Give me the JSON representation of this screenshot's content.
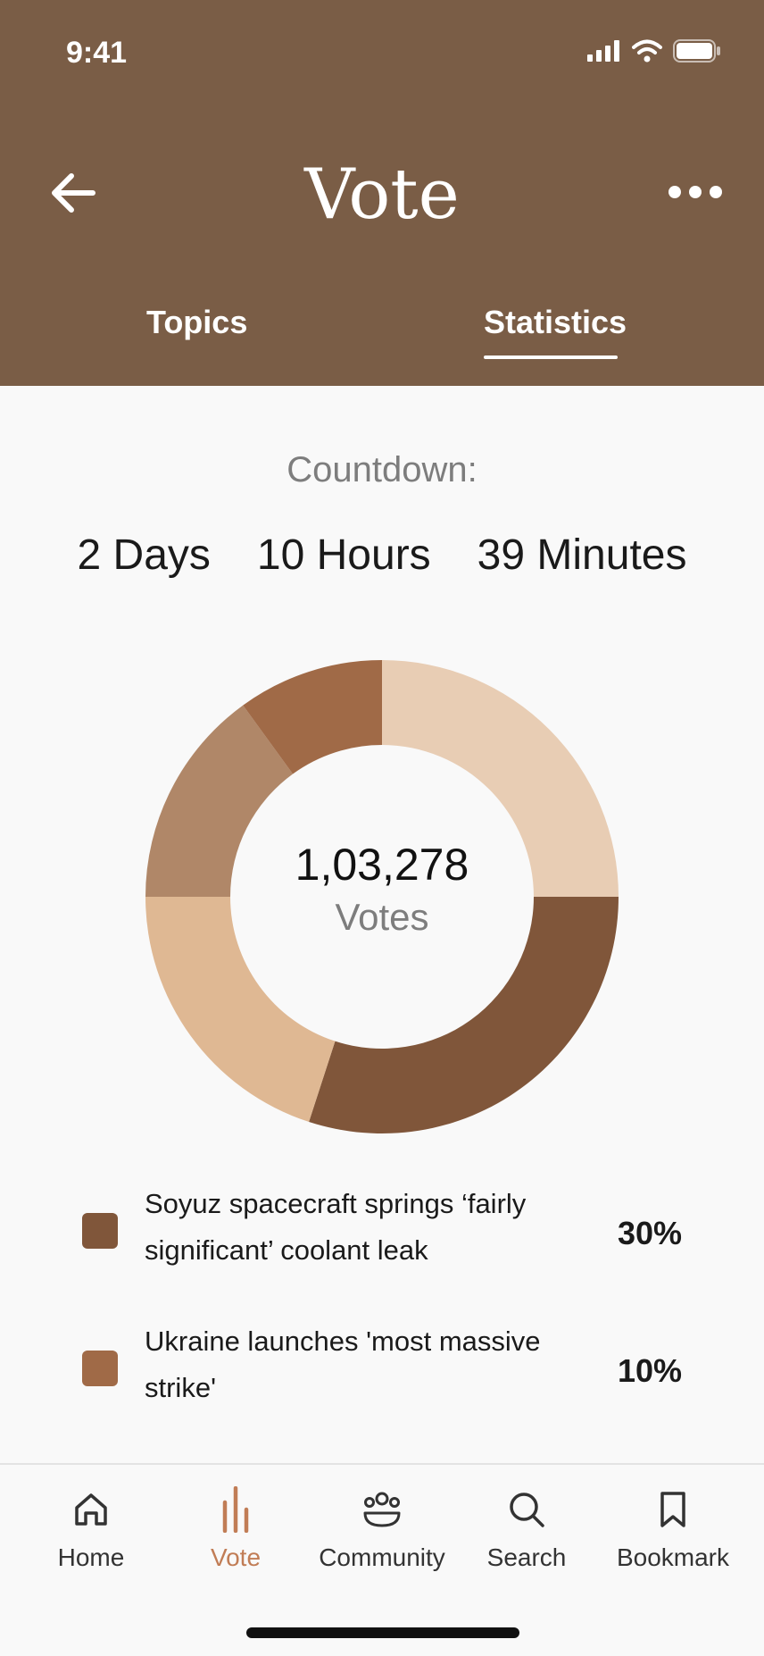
{
  "status_bar": {
    "time": "9:41"
  },
  "header": {
    "title": "Vote"
  },
  "tabs": [
    {
      "label": "Topics",
      "active": false
    },
    {
      "label": "Statistics",
      "active": true
    }
  ],
  "countdown": {
    "label": "Countdown:",
    "days": "2 Days",
    "hours": "10 Hours",
    "minutes": "39 Minutes"
  },
  "chart_data": {
    "type": "pie",
    "total": "1,03,278",
    "total_label": "Votes",
    "slices": [
      {
        "value": 25,
        "color": "#e8cdb4"
      },
      {
        "value": 30,
        "color": "#80563a"
      },
      {
        "value": 20,
        "color": "#dfb893"
      },
      {
        "value": 15,
        "color": "#b08768"
      },
      {
        "value": 10,
        "color": "#a06a47"
      }
    ]
  },
  "legend": [
    {
      "text": "Soyuz spacecraft springs ‘fairly significant’ coolant leak",
      "percent": "30%",
      "color": "#80563a"
    },
    {
      "text": "Ukraine launches 'most massive strike'",
      "percent": "10%",
      "color": "#a06a47"
    }
  ],
  "nav": [
    {
      "label": "Home",
      "icon": "home-icon",
      "active": false
    },
    {
      "label": "Vote",
      "icon": "vote-icon",
      "active": true
    },
    {
      "label": "Community",
      "icon": "community-icon",
      "active": false
    },
    {
      "label": "Search",
      "icon": "search-icon",
      "active": false
    },
    {
      "label": "Bookmark",
      "icon": "bookmark-icon",
      "active": false
    }
  ],
  "colors": {
    "header": "#7a5d46",
    "accent": "#c17d56",
    "background": "#f9f9f9"
  }
}
